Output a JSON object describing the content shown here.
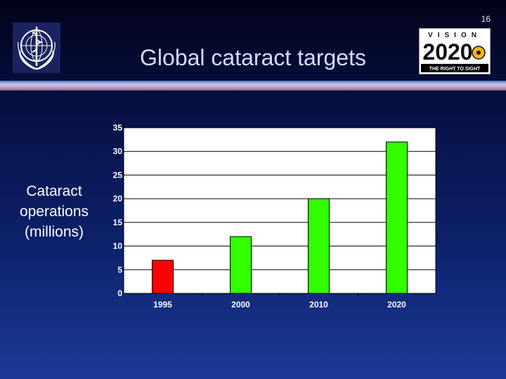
{
  "slide": {
    "number": "16",
    "title": "Global cataract targets"
  },
  "logos": {
    "who": {
      "icon": "who-emblem-icon"
    },
    "vision2020": {
      "word": "VISION",
      "year": "2020",
      "tagline": "THE RIGHT TO SIGHT"
    }
  },
  "chart_data": {
    "type": "bar",
    "title": "",
    "xlabel": "",
    "ylabel": "Cataract operations (millions)",
    "categories": [
      "1995",
      "2000",
      "2010",
      "2020"
    ],
    "values": [
      7,
      12,
      20,
      32
    ],
    "bar_colors": [
      "#ff0000",
      "#33ff00",
      "#33ff00",
      "#33ff00"
    ],
    "ylim": [
      0,
      35
    ],
    "yticks": [
      0,
      5,
      10,
      15,
      20,
      25,
      30,
      35
    ],
    "grid": true,
    "plot_background": "#ffffff",
    "legend": "none"
  }
}
